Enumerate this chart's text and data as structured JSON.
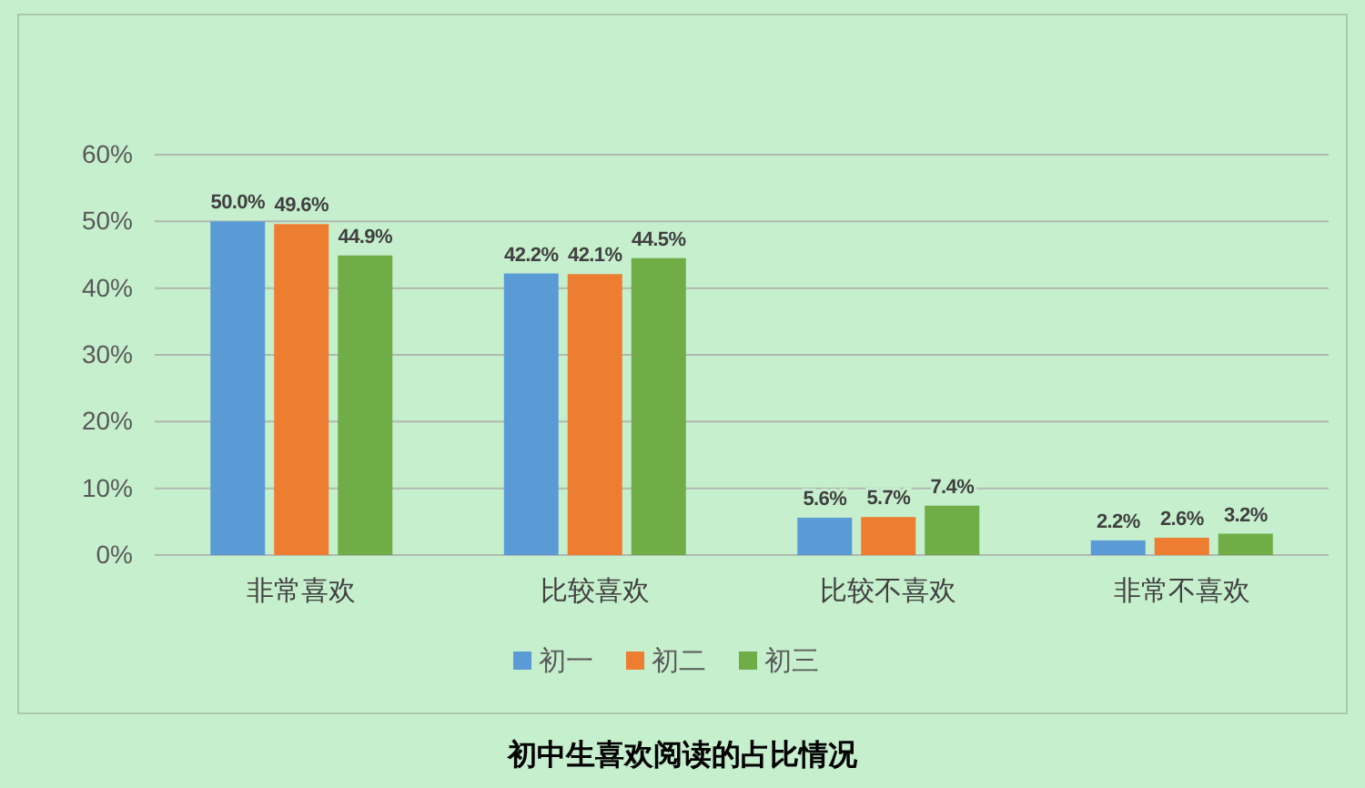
{
  "chart_data": {
    "type": "bar",
    "title": "初中生喜欢阅读的占比情况",
    "categories": [
      "非常喜欢",
      "比较喜欢",
      "比较不喜欢",
      "非常不喜欢"
    ],
    "series": [
      {
        "name": "初一",
        "color": "#5b9bd5",
        "values": [
          50.0,
          42.2,
          5.6,
          2.2
        ],
        "value_labels": [
          "50.0%",
          "42.2%",
          "5.6%",
          "2.2%"
        ]
      },
      {
        "name": "初二",
        "color": "#ed7d31",
        "values": [
          49.6,
          42.1,
          5.7,
          2.6
        ],
        "value_labels": [
          "49.6%",
          "42.1%",
          "5.7%",
          "2.6%"
        ]
      },
      {
        "name": "初三",
        "color": "#70ad47",
        "values": [
          44.9,
          44.5,
          7.4,
          3.2
        ],
        "value_labels": [
          "44.9%",
          "44.5%",
          "7.4%",
          "3.2%"
        ]
      }
    ],
    "ylim": [
      0,
      60
    ],
    "yticks": [
      {
        "value": 0,
        "label": "0%"
      },
      {
        "value": 10,
        "label": "10%"
      },
      {
        "value": 20,
        "label": "20%"
      },
      {
        "value": 30,
        "label": "30%"
      },
      {
        "value": 40,
        "label": "40%"
      },
      {
        "value": 50,
        "label": "50%"
      },
      {
        "value": 60,
        "label": "60%"
      }
    ],
    "grid": "y",
    "legend": "bottom"
  }
}
